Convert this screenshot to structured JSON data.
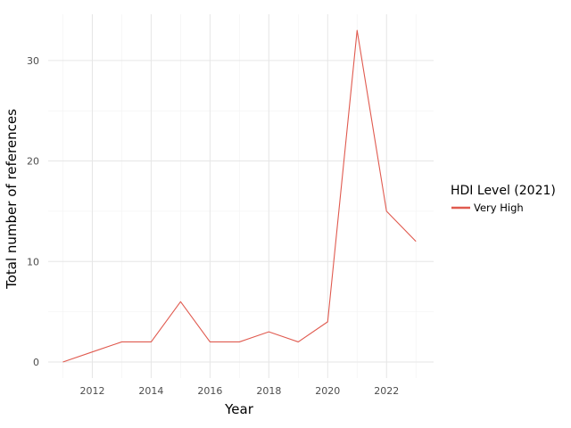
{
  "chart_data": {
    "type": "line",
    "title": "",
    "xlabel": "Year",
    "ylabel": "Total number of references",
    "xlim": [
      2010.5,
      2023.6
    ],
    "ylim": [
      -1.6,
      34.6
    ],
    "x_ticks": [
      2012,
      2014,
      2016,
      2018,
      2020,
      2022
    ],
    "y_ticks": [
      0,
      10,
      20,
      30
    ],
    "grid": true,
    "legend": {
      "title": "HDI Level (2021)",
      "position": "right",
      "entries": [
        {
          "label": "Very High",
          "color": "#e05a4f"
        }
      ]
    },
    "series": [
      {
        "name": "Very High",
        "color": "#e05a4f",
        "x": [
          2011,
          2012,
          2013,
          2014,
          2015,
          2016,
          2017,
          2018,
          2019,
          2020,
          2021,
          2022,
          2023
        ],
        "y": [
          0,
          1,
          2,
          2,
          6,
          2,
          2,
          3,
          2,
          4,
          33,
          15,
          12
        ]
      }
    ]
  }
}
